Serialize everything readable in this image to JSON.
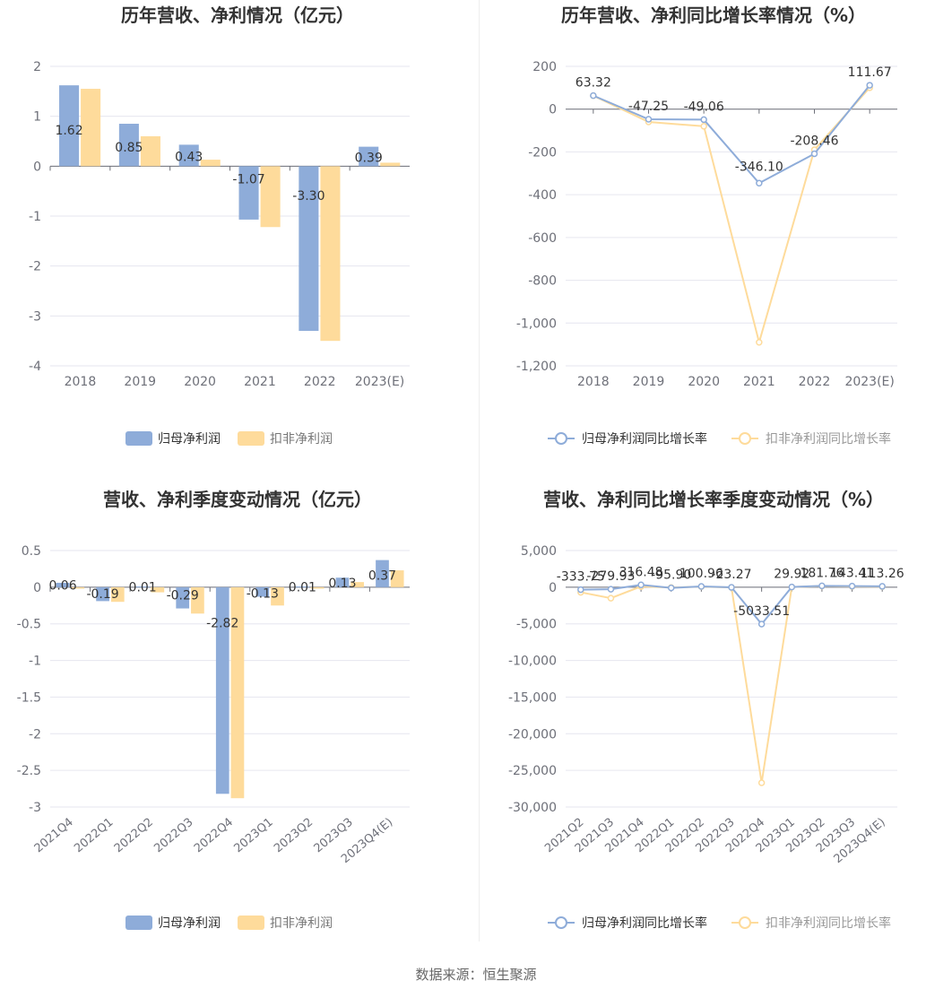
{
  "footer": "数据来源：恒生聚源",
  "colors": {
    "blue": "#8eacd9",
    "orange": "#fedb9b",
    "axis": "#6e7079",
    "grid": "#e6e6ef",
    "text": "#333333"
  },
  "chart_data": [
    {
      "type": "bar",
      "title": "历年营收、净利情况（亿元）",
      "categories": [
        "2018",
        "2019",
        "2020",
        "2021",
        "2022",
        "2023(E)"
      ],
      "ylim": [
        -4,
        2
      ],
      "yticks": [
        "2",
        "1",
        "0",
        "-1",
        "-2",
        "-3",
        "-4"
      ],
      "series": [
        {
          "name": "归母净利润",
          "values": [
            1.62,
            0.85,
            0.43,
            -1.07,
            -3.3,
            0.39
          ],
          "labels": [
            "1.62",
            "0.85",
            "0.43",
            "-1.07",
            "-3.30",
            "0.39"
          ]
        },
        {
          "name": "扣非净利润",
          "values": [
            1.55,
            0.6,
            0.13,
            -1.22,
            -3.5,
            0.07
          ]
        }
      ],
      "legend": "bottom-center"
    },
    {
      "type": "line",
      "title": "历年营收、净利同比增长率情况（%）",
      "categories": [
        "2018",
        "2019",
        "2020",
        "2021",
        "2022",
        "2023(E)"
      ],
      "ylim": [
        -1200,
        200
      ],
      "yticks": [
        "200",
        "0",
        "-200",
        "-400",
        "-600",
        "-800",
        "-1,000",
        "-1,200"
      ],
      "series": [
        {
          "name": "归母净利润同比增长率",
          "values": [
            63.32,
            -47.25,
            -49.06,
            -346.1,
            -208.46,
            111.67
          ],
          "labels": [
            "63.32",
            "-47.25",
            "-49.06",
            "-346.10",
            "-208.46",
            "111.67"
          ]
        },
        {
          "name": "扣非净利润同比增长率",
          "values": [
            63,
            -60,
            -80,
            -1090,
            -190,
            100
          ]
        }
      ],
      "legend": "bottom-center"
    },
    {
      "type": "bar",
      "title": "营收、净利季度变动情况（亿元）",
      "categories": [
        "2021Q4",
        "2022Q1",
        "2022Q2",
        "2022Q3",
        "2022Q4",
        "2023Q1",
        "2023Q2",
        "2023Q3",
        "2023Q4(E)"
      ],
      "ylim": [
        -3,
        0.5
      ],
      "yticks": [
        "0.5",
        "0",
        "-0.5",
        "-1",
        "-1.5",
        "-2",
        "-2.5",
        "-3"
      ],
      "series": [
        {
          "name": "归母净利润",
          "values": [
            0.06,
            -0.19,
            0.01,
            -0.29,
            -2.82,
            -0.13,
            0.01,
            0.13,
            0.37
          ],
          "labels": [
            "0.06",
            "-0.19",
            "0.01",
            "-0.29",
            "-2.82",
            "-0.13",
            "0.01",
            "0.13",
            "0.37"
          ]
        },
        {
          "name": "扣非净利润",
          "values": [
            -0.02,
            -0.2,
            -0.07,
            -0.36,
            -2.88,
            -0.25,
            -0.02,
            0.07,
            0.23
          ]
        }
      ],
      "legend": "bottom-center"
    },
    {
      "type": "line",
      "title": "营收、净利同比增长率季度变动情况（%）",
      "categories": [
        "2021Q2",
        "2021Q3",
        "2021Q4",
        "2022Q1",
        "2022Q2",
        "2022Q3",
        "2022Q4",
        "2023Q1",
        "2023Q2",
        "2023Q3",
        "2023Q4(E)"
      ],
      "ylim": [
        -30000,
        5000
      ],
      "yticks": [
        "5,000",
        "0",
        "-5,000",
        "-10,000",
        "-15,000",
        "-20,000",
        "-25,000",
        "-30,000"
      ],
      "series": [
        {
          "name": "归母净利润同比增长率",
          "values": [
            -333.75,
            -279.93,
            316.48,
            -95.9,
            100.96,
            -23.27,
            -5033.51,
            29.92,
            181.76,
            143.41,
            113.26
          ],
          "labels": [
            "-333.75",
            "-279.93",
            "316.48",
            "-95.90",
            "100.96",
            "-23.27",
            "-5033.51",
            "29.92",
            "181.76",
            "143.41",
            "113.26"
          ]
        },
        {
          "name": "扣非净利润同比增长率",
          "values": [
            -700,
            -1500,
            100,
            -50,
            80,
            -30,
            -26700,
            20,
            150,
            100,
            80
          ]
        }
      ],
      "legend": "bottom-center"
    }
  ]
}
